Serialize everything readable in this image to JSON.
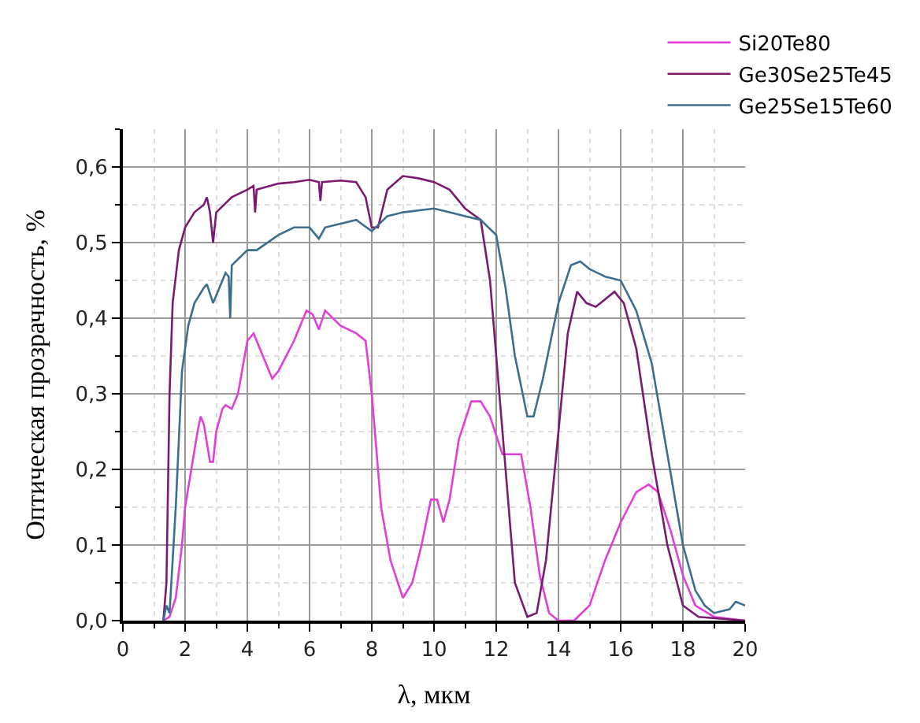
{
  "chart_data": {
    "type": "line",
    "xlabel": "λ, мкм",
    "ylabel": "Оптическая прозрачность, %",
    "xlim": [
      0,
      20
    ],
    "xticks": [
      0,
      2,
      4,
      6,
      8,
      10,
      12,
      14,
      16,
      18,
      20
    ],
    "ylim": [
      0,
      0.65
    ],
    "yticks": [
      {
        "value": 0,
        "label": "0,0"
      },
      {
        "value": 0.1,
        "label": "0,1"
      },
      {
        "value": 0.2,
        "label": "0,2"
      },
      {
        "value": 0.3,
        "label": "0,3"
      },
      {
        "value": 0.4,
        "label": "0,4"
      },
      {
        "value": 0.5,
        "label": "0,5"
      },
      {
        "value": 0.6,
        "label": "0,6"
      }
    ],
    "grid": true,
    "legend": "top right",
    "marker": "none",
    "line_style": "solid",
    "series": [
      {
        "name": "Si20Te80",
        "color": "#e040d8",
        "x": [
          1.3,
          1.5,
          1.7,
          1.9,
          2.0,
          2.2,
          2.4,
          2.5,
          2.6,
          2.8,
          2.9,
          3.0,
          3.2,
          3.3,
          3.5,
          3.7,
          4.0,
          4.2,
          4.3,
          4.5,
          4.8,
          5.0,
          5.5,
          5.9,
          6.1,
          6.3,
          6.5,
          7.0,
          7.5,
          7.8,
          8.0,
          8.3,
          8.6,
          9.0,
          9.3,
          9.6,
          9.9,
          10.1,
          10.3,
          10.5,
          10.8,
          11.2,
          11.5,
          11.8,
          12.2,
          12.5,
          12.8,
          13.1,
          13.4,
          13.7,
          14.0,
          14.5,
          15.0,
          15.5,
          16.0,
          16.5,
          16.9,
          17.2,
          17.6,
          18.0,
          18.4,
          19.0,
          20.0
        ],
        "values": [
          0.0,
          0.005,
          0.03,
          0.1,
          0.15,
          0.2,
          0.25,
          0.27,
          0.26,
          0.21,
          0.21,
          0.25,
          0.28,
          0.285,
          0.28,
          0.3,
          0.37,
          0.38,
          0.37,
          0.35,
          0.32,
          0.33,
          0.37,
          0.41,
          0.405,
          0.385,
          0.41,
          0.39,
          0.38,
          0.37,
          0.3,
          0.15,
          0.08,
          0.03,
          0.05,
          0.1,
          0.16,
          0.16,
          0.13,
          0.16,
          0.24,
          0.29,
          0.29,
          0.27,
          0.22,
          0.22,
          0.22,
          0.15,
          0.06,
          0.01,
          0.0,
          0.0,
          0.02,
          0.08,
          0.13,
          0.17,
          0.18,
          0.17,
          0.12,
          0.06,
          0.02,
          0.005,
          0.0
        ]
      },
      {
        "name": "Ge30Se25Te45",
        "color": "#7b1a70",
        "x": [
          1.3,
          1.4,
          1.5,
          1.6,
          1.8,
          2.0,
          2.3,
          2.6,
          2.7,
          2.8,
          2.9,
          3.0,
          3.5,
          4.0,
          4.2,
          4.25,
          4.3,
          5.0,
          5.5,
          6.0,
          6.3,
          6.35,
          6.4,
          7.0,
          7.5,
          7.8,
          8.0,
          8.2,
          8.5,
          9.0,
          9.5,
          10.0,
          10.5,
          11.0,
          11.5,
          11.8,
          12.0,
          12.3,
          12.6,
          13.0,
          13.3,
          13.6,
          14.0,
          14.3,
          14.6,
          14.9,
          15.2,
          15.5,
          15.8,
          16.1,
          16.5,
          17.0,
          17.5,
          18.0,
          18.5,
          20.0
        ],
        "values": [
          0.0,
          0.05,
          0.3,
          0.42,
          0.49,
          0.52,
          0.54,
          0.55,
          0.56,
          0.54,
          0.5,
          0.54,
          0.56,
          0.57,
          0.575,
          0.54,
          0.57,
          0.578,
          0.58,
          0.583,
          0.58,
          0.555,
          0.58,
          0.582,
          0.58,
          0.56,
          0.52,
          0.52,
          0.57,
          0.588,
          0.585,
          0.58,
          0.57,
          0.545,
          0.53,
          0.45,
          0.35,
          0.2,
          0.05,
          0.005,
          0.01,
          0.08,
          0.25,
          0.38,
          0.435,
          0.42,
          0.415,
          0.425,
          0.435,
          0.42,
          0.36,
          0.22,
          0.1,
          0.02,
          0.005,
          0.0
        ]
      },
      {
        "name": "Ge25Se15Te60",
        "color": "#3c6e8f",
        "x": [
          1.3,
          1.4,
          1.5,
          1.7,
          1.9,
          2.1,
          2.3,
          2.6,
          2.7,
          2.9,
          3.0,
          3.3,
          3.4,
          3.45,
          3.5,
          4.0,
          4.3,
          5.0,
          5.5,
          6.0,
          6.3,
          6.5,
          7.0,
          7.5,
          8.0,
          8.5,
          9.0,
          10.0,
          10.5,
          11.0,
          11.5,
          12.0,
          12.3,
          12.6,
          13.0,
          13.2,
          13.5,
          14.0,
          14.4,
          14.7,
          15.0,
          15.5,
          16.0,
          16.5,
          17.0,
          17.5,
          18.0,
          18.4,
          18.7,
          19.0,
          19.5,
          19.7,
          20.0
        ],
        "values": [
          0.0,
          0.02,
          0.01,
          0.15,
          0.33,
          0.39,
          0.42,
          0.44,
          0.445,
          0.42,
          0.43,
          0.46,
          0.455,
          0.4,
          0.47,
          0.49,
          0.49,
          0.51,
          0.52,
          0.52,
          0.505,
          0.52,
          0.525,
          0.53,
          0.515,
          0.535,
          0.54,
          0.545,
          0.54,
          0.535,
          0.53,
          0.51,
          0.44,
          0.35,
          0.27,
          0.27,
          0.32,
          0.42,
          0.47,
          0.475,
          0.465,
          0.455,
          0.45,
          0.41,
          0.34,
          0.22,
          0.1,
          0.04,
          0.02,
          0.01,
          0.015,
          0.025,
          0.02
        ]
      }
    ]
  }
}
